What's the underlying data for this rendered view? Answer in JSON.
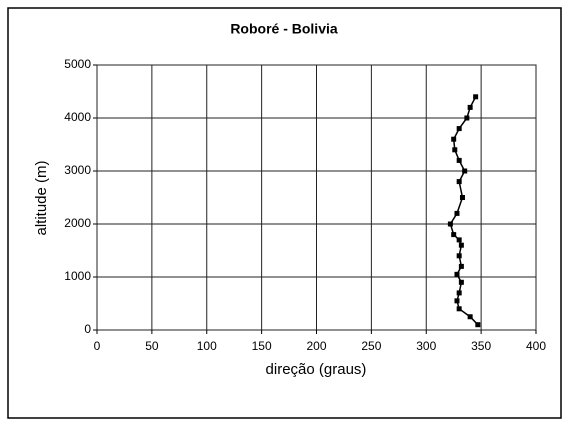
{
  "chart_data": {
    "type": "line",
    "title": "Roboré - Bolivia",
    "xlabel": "direção (graus)",
    "ylabel": "altitude (m)",
    "x": [
      347,
      340,
      330,
      328,
      330,
      332,
      328,
      332,
      330,
      332,
      330,
      325,
      322,
      328,
      333,
      330,
      335,
      330,
      326,
      325,
      330,
      337,
      340,
      345
    ],
    "values": [
      100,
      250,
      400,
      550,
      700,
      900,
      1050,
      1200,
      1400,
      1600,
      1700,
      1800,
      2000,
      2200,
      2500,
      2800,
      3000,
      3200,
      3400,
      3600,
      3800,
      4000,
      4200,
      4400
    ],
    "color": "#000000",
    "xlim": [
      0,
      400
    ],
    "xticks": [
      0,
      50,
      100,
      150,
      200,
      250,
      300,
      350,
      400
    ],
    "ylim": [
      0,
      5000
    ],
    "yticks": [
      0,
      1000,
      2000,
      3000,
      4000,
      5000
    ],
    "grid": true
  }
}
